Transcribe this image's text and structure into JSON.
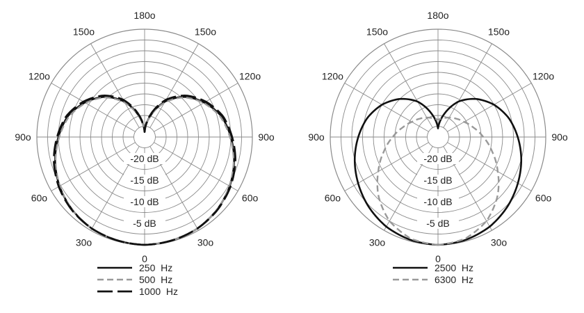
{
  "chart_data": [
    {
      "type": "polar",
      "angle_labels": [
        "0",
        "30o",
        "60o",
        "90o",
        "120o",
        "150o",
        "180o",
        "150o",
        "120o",
        "90o",
        "60o",
        "30o"
      ],
      "radial_labels": [
        "-20 dB",
        "-15 dB",
        "-10 dB",
        "-5 dB"
      ],
      "radial_range_db": [
        -25,
        0
      ],
      "theta_unit": "degrees from 0 at bottom",
      "series": [
        {
          "name": "250  Hz",
          "color": "#111111",
          "style": "solid",
          "theta": [
            0,
            15,
            30,
            45,
            60,
            75,
            90,
            105,
            120,
            135,
            150,
            165,
            180
          ],
          "level_db": [
            0,
            -0.2,
            -0.5,
            -1.2,
            -2.2,
            -3.5,
            -5,
            -6.5,
            -9,
            -11.8,
            -15.5,
            -20,
            -23.8
          ]
        },
        {
          "name": "500  Hz",
          "color": "#999999",
          "style": "dashed",
          "theta": [
            0,
            15,
            30,
            45,
            60,
            75,
            90,
            105,
            120,
            135,
            150,
            165,
            180
          ],
          "level_db": [
            0,
            -0.2,
            -0.5,
            -1.2,
            -2.3,
            -3.6,
            -5.2,
            -6.8,
            -9.2,
            -12,
            -15.8,
            -20.2,
            -23.8
          ]
        },
        {
          "name": "1000  Hz",
          "color": "#111111",
          "style": "long-dash",
          "theta": [
            0,
            15,
            30,
            45,
            60,
            75,
            90,
            105,
            120,
            135,
            150,
            165,
            180
          ],
          "level_db": [
            0,
            -0.2,
            -0.5,
            -1.1,
            -2,
            -3.2,
            -4.7,
            -6.2,
            -8.6,
            -11.4,
            -15,
            -19.6,
            -23.8
          ]
        }
      ]
    },
    {
      "type": "polar",
      "angle_labels": [
        "0",
        "30o",
        "60o",
        "90o",
        "120o",
        "150o",
        "180o",
        "150o",
        "120o",
        "90o",
        "60o",
        "30o"
      ],
      "radial_labels": [
        "-20 dB",
        "-15 dB",
        "-10 dB",
        "-5 dB"
      ],
      "radial_range_db": [
        -25,
        0
      ],
      "theta_unit": "degrees from 0 at bottom",
      "series": [
        {
          "name": "2500  Hz",
          "color": "#111111",
          "style": "solid",
          "theta": [
            0,
            15,
            30,
            45,
            60,
            75,
            90,
            105,
            120,
            135,
            150,
            165,
            180
          ],
          "level_db": [
            0,
            -0.3,
            -1,
            -2.2,
            -3.6,
            -5,
            -6.5,
            -8,
            -10,
            -12.5,
            -15.5,
            -19.5,
            -23
          ]
        },
        {
          "name": "6300  Hz",
          "color": "#999999",
          "style": "dashed",
          "theta": [
            0,
            15,
            30,
            45,
            60,
            75,
            90,
            105,
            120,
            135,
            150,
            165,
            180
          ],
          "level_db": [
            0,
            -0.6,
            -2.5,
            -5.5,
            -9,
            -12,
            -14.5,
            -16.5,
            -18,
            -19,
            -19.8,
            -20.5,
            -21
          ]
        }
      ]
    }
  ]
}
